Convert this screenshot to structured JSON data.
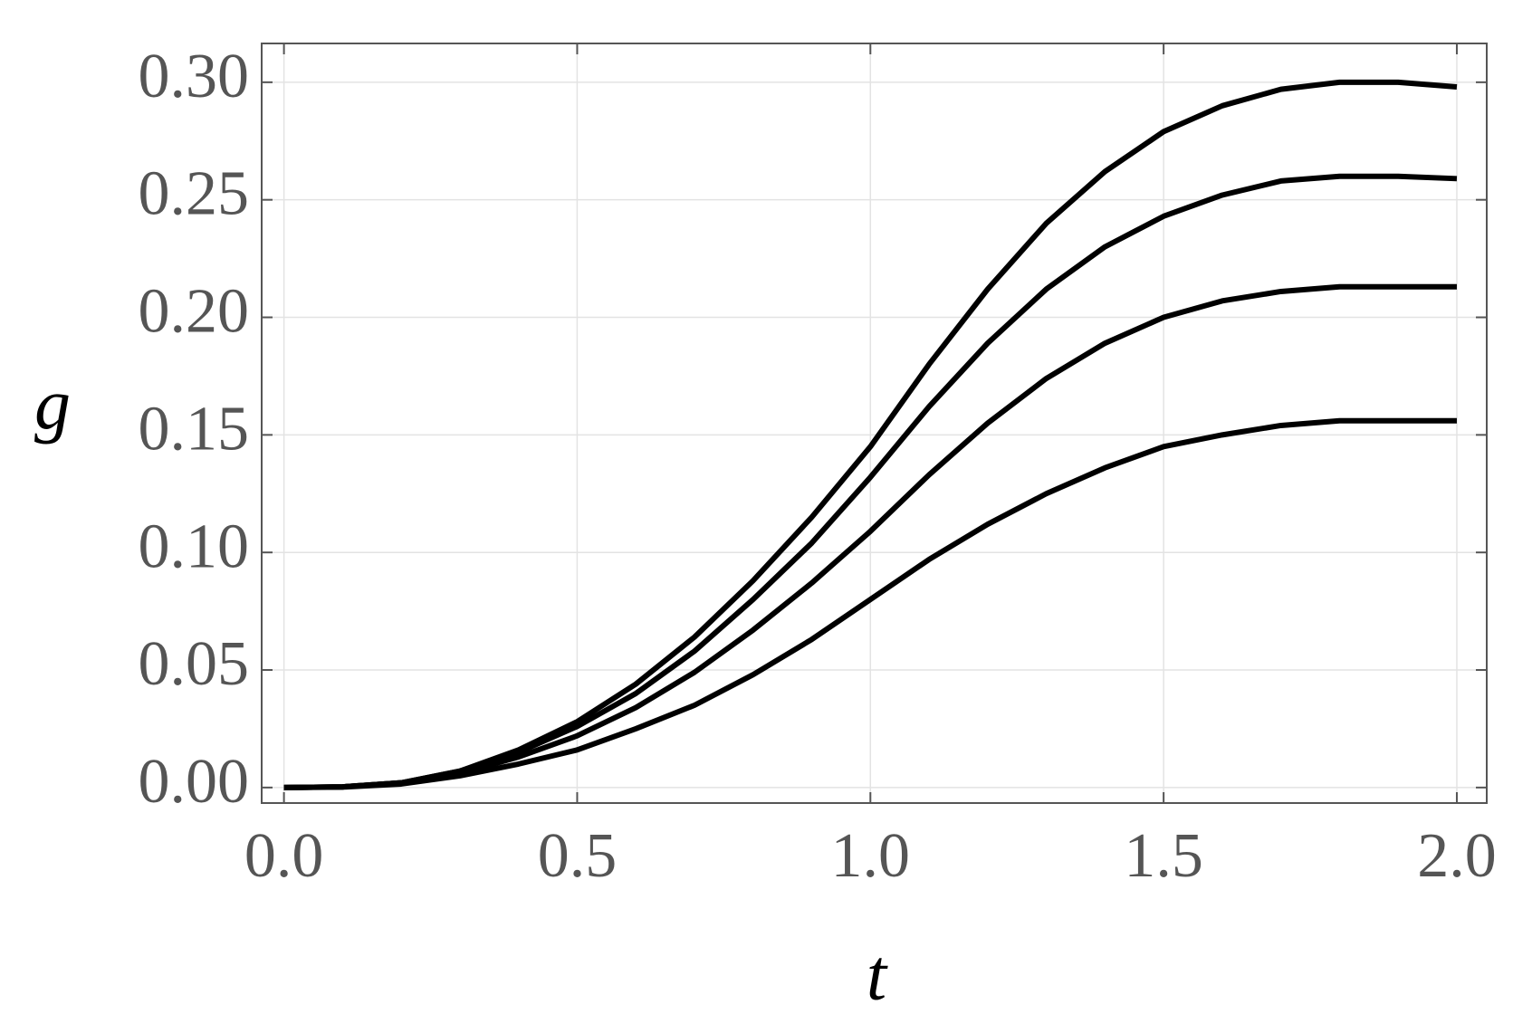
{
  "chart_data": {
    "type": "line",
    "xlabel": "t",
    "ylabel": "g",
    "x": [
      0,
      0.1,
      0.2,
      0.3,
      0.4,
      0.5,
      0.6,
      0.7,
      0.8,
      0.9,
      1.0,
      1.1,
      1.2,
      1.3,
      1.4,
      1.5,
      1.6,
      1.7,
      1.8,
      1.9,
      2.0
    ],
    "series": [
      {
        "color": "#000000",
        "values": [
          0,
          0.0003,
          0.002,
          0.007,
          0.016,
          0.028,
          0.044,
          0.064,
          0.088,
          0.115,
          0.145,
          0.18,
          0.212,
          0.24,
          0.262,
          0.279,
          0.29,
          0.297,
          0.3,
          0.3,
          0.298
        ]
      },
      {
        "color": "#000000",
        "values": [
          0,
          0.0003,
          0.002,
          0.007,
          0.015,
          0.026,
          0.04,
          0.058,
          0.08,
          0.104,
          0.132,
          0.162,
          0.189,
          0.212,
          0.23,
          0.243,
          0.252,
          0.258,
          0.26,
          0.26,
          0.259
        ]
      },
      {
        "color": "#000000",
        "values": [
          0,
          0.0003,
          0.002,
          0.006,
          0.013,
          0.022,
          0.034,
          0.049,
          0.067,
          0.087,
          0.109,
          0.133,
          0.155,
          0.174,
          0.189,
          0.2,
          0.207,
          0.211,
          0.213,
          0.213,
          0.213
        ]
      },
      {
        "color": "#000000",
        "values": [
          0,
          0.0002,
          0.0015,
          0.005,
          0.01,
          0.016,
          0.025,
          0.035,
          0.048,
          0.063,
          0.08,
          0.097,
          0.112,
          0.125,
          0.136,
          0.145,
          0.15,
          0.154,
          0.156,
          0.156,
          0.156
        ]
      }
    ],
    "xlim": [
      -0.038,
      2.051
    ],
    "ylim": [
      -0.0066,
      0.3165
    ],
    "xticks": [
      {
        "value": 0,
        "label": "0.0"
      },
      0.5,
      {
        "value": 1,
        "label": "1.0"
      },
      1.5,
      {
        "value": 2,
        "label": "2.0"
      }
    ],
    "yticks": [
      {
        "value": 0,
        "label": "0.00"
      },
      0.05,
      {
        "value": 0.1,
        "label": "0.10"
      },
      0.15,
      {
        "value": 0.2,
        "label": "0.20"
      },
      0.25,
      {
        "value": 0.3,
        "label": "0.30"
      }
    ],
    "grid": true
  }
}
